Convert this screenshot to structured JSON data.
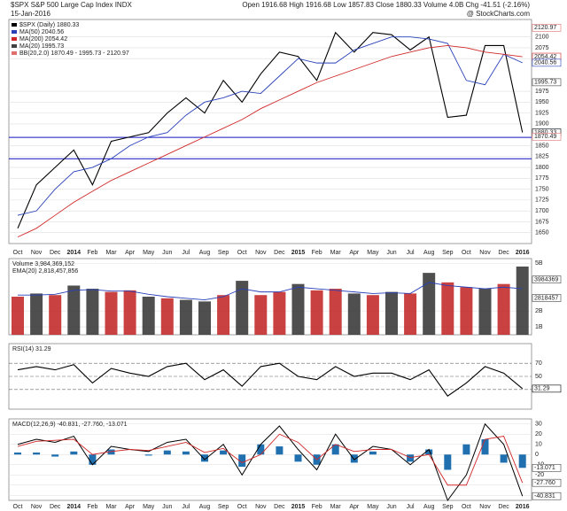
{
  "header": {
    "title": "$SPX S&P 500 Large Cap Index INDX",
    "date": "15-Jan-2016",
    "quote": "Open 1916.68 High 1916.68 Low 1857.83 Close 1880.33 Volume 4.0B Chg -41.51 (-2.16%)",
    "brand": "@ StockCharts.com"
  },
  "chart_data": [
    {
      "type": "line",
      "categories": [
        "Oct",
        "Nov",
        "Dec",
        "2014",
        "Feb",
        "Mar",
        "Apr",
        "May",
        "Jun",
        "Jul",
        "Aug",
        "Sep",
        "Oct",
        "Nov",
        "Dec",
        "2015",
        "Feb",
        "Mar",
        "Apr",
        "May",
        "Jun",
        "Jul",
        "Aug",
        "Sep",
        "Oct",
        "Nov",
        "Dec",
        "2016"
      ],
      "series": [
        {
          "name": "$SPX (Daily) 1880.33",
          "color": "#000000",
          "values": [
            1660,
            1760,
            1800,
            1840,
            1760,
            1860,
            1870,
            1880,
            1925,
            1960,
            1925,
            2000,
            1950,
            2015,
            2065,
            2055,
            2000,
            2110,
            2065,
            2110,
            2105,
            2070,
            2100,
            1915,
            1920,
            2080,
            2080,
            1880.33
          ]
        },
        {
          "name": "MA(50) 2040.56",
          "color": "#2840b8",
          "values": [
            1690,
            1700,
            1750,
            1790,
            1800,
            1820,
            1850,
            1870,
            1880,
            1920,
            1950,
            1960,
            1975,
            1970,
            2010,
            2050,
            2040,
            2040,
            2070,
            2085,
            2100,
            2100,
            2095,
            2085,
            2000,
            1990,
            2060,
            2040.56
          ]
        },
        {
          "name": "MA(200) 2054.42",
          "color": "#d02828",
          "values": [
            1640,
            1660,
            1690,
            1720,
            1745,
            1770,
            1790,
            1810,
            1830,
            1850,
            1870,
            1890,
            1910,
            1935,
            1955,
            1975,
            1995,
            2010,
            2025,
            2040,
            2055,
            2065,
            2075,
            2080,
            2075,
            2065,
            2060,
            2054.42
          ]
        }
      ],
      "legend_extra": [
        {
          "text": "MA(20) 1995.73",
          "color": "#404040"
        },
        {
          "text": "BB(20,2.0) 1870.49 - 1995.73 - 2120.97",
          "color": "#e07070"
        }
      ],
      "last_labels": [
        {
          "value": 2120.97,
          "color": "#e07070"
        },
        {
          "value": 2054.42,
          "color": "#d02828"
        },
        {
          "value": 2040.56,
          "color": "#2840b8"
        },
        {
          "value": 1995.73,
          "color": "#404040"
        },
        {
          "value": 1880.33,
          "color": "#000000"
        },
        {
          "value": 1870.49,
          "color": "#e07070"
        }
      ],
      "hlines": [
        1869,
        1820
      ],
      "hline_color": "#1010c0",
      "ylim": [
        1625,
        2140
      ],
      "yticks": [
        1650,
        1675,
        1700,
        1725,
        1750,
        1775,
        1800,
        1825,
        1850,
        1900,
        1925,
        1950,
        1975,
        2050,
        2075,
        2100
      ],
      "grid": true
    },
    {
      "type": "bar",
      "title": "Volume 3,984,369,152",
      "values": [
        2.9,
        3.1,
        3.0,
        3.6,
        3.4,
        3.2,
        3.3,
        2.9,
        2.8,
        2.7,
        2.6,
        3.0,
        3.9,
        3.0,
        3.2,
        3.7,
        3.3,
        3.4,
        3.1,
        3.0,
        3.2,
        3.1,
        4.4,
        3.8,
        3.5,
        3.4,
        3.7,
        4.8
      ],
      "colors": [
        "#c02020",
        "#303030",
        "#c02020",
        "#303030",
        "#303030",
        "#c02020",
        "#c02020",
        "#303030",
        "#c02020",
        "#303030",
        "#303030",
        "#c02020",
        "#303030",
        "#c02020",
        "#c02020",
        "#303030",
        "#c02020",
        "#c02020",
        "#303030",
        "#c02020",
        "#303030",
        "#c02020",
        "#303030",
        "#c02020",
        "#c02020",
        "#303030",
        "#c02020",
        "#303030"
      ],
      "ema": {
        "name": "EMA(20) 2,818,457,856",
        "color": "#2840b8",
        "values": [
          3.0,
          3.0,
          3.05,
          3.3,
          3.35,
          3.25,
          3.25,
          3.05,
          2.9,
          2.8,
          2.7,
          2.9,
          3.4,
          3.2,
          3.2,
          3.5,
          3.4,
          3.3,
          3.2,
          3.1,
          3.15,
          3.1,
          3.8,
          3.6,
          3.5,
          3.4,
          3.5,
          3.4
        ]
      },
      "last_labels": [
        {
          "value": 3.984369152,
          "label": "3984369"
        },
        {
          "value": 2.818457856,
          "label": "2818457"
        }
      ],
      "ylim": [
        0.5,
        5.3
      ],
      "yticks": [
        {
          "value": 5,
          "label": "5B"
        },
        {
          "value": 2,
          "label": "2B"
        },
        {
          "value": 1,
          "label": "1B"
        }
      ]
    },
    {
      "type": "line",
      "title": "RSI(14) 31.29",
      "series": [
        {
          "name": "RSI(14) 31.29",
          "color": "#000000",
          "values": [
            60,
            65,
            60,
            68,
            40,
            62,
            55,
            50,
            65,
            70,
            45,
            60,
            35,
            65,
            70,
            50,
            45,
            65,
            50,
            55,
            55,
            45,
            60,
            20,
            40,
            65,
            55,
            31.29
          ]
        }
      ],
      "last_labels": [
        {
          "value": 31.29,
          "color": "#000000"
        }
      ],
      "ylim": [
        0,
        100
      ],
      "yticks": [
        70,
        50,
        30
      ]
    },
    {
      "type": "macd",
      "title": "MACD(12,26,9) -40.831, -27.760, -13.071",
      "categories": [
        "Oct",
        "Nov",
        "Dec",
        "2014",
        "Feb",
        "Mar",
        "Apr",
        "May",
        "Jun",
        "Jul",
        "Aug",
        "Sep",
        "Oct",
        "Nov",
        "Dec",
        "2015",
        "Feb",
        "Mar",
        "Apr",
        "May",
        "Jun",
        "Jul",
        "Aug",
        "Sep",
        "Oct",
        "Nov",
        "Dec",
        "2016"
      ],
      "macd": {
        "color": "#000000",
        "values": [
          10,
          15,
          12,
          18,
          -10,
          8,
          5,
          3,
          12,
          15,
          -5,
          10,
          -20,
          10,
          28,
          5,
          -15,
          20,
          -5,
          8,
          5,
          -10,
          5,
          -45,
          -20,
          30,
          10,
          -40.831
        ]
      },
      "signal": {
        "color": "#d02828",
        "values": [
          8,
          13,
          14,
          15,
          0,
          3,
          5,
          4,
          8,
          12,
          2,
          6,
          -8,
          0,
          20,
          12,
          -5,
          10,
          3,
          5,
          5,
          -3,
          0,
          -30,
          -30,
          15,
          18,
          -27.76
        ]
      },
      "histogram": {
        "color": "#2070b0",
        "values": [
          2,
          2,
          -2,
          3,
          -10,
          5,
          0,
          -1,
          4,
          3,
          -7,
          4,
          -12,
          10,
          8,
          -7,
          -10,
          10,
          -8,
          3,
          0,
          -7,
          5,
          -15,
          10,
          15,
          -8,
          -13.071
        ]
      },
      "last_labels": [
        {
          "value": -13.071,
          "label": "-13.071"
        },
        {
          "value": -27.76,
          "label": "-27.760"
        },
        {
          "value": -40.831,
          "label": "-40.831"
        }
      ],
      "ylim": [
        -45,
        35
      ],
      "yticks": [
        30,
        20,
        10,
        0,
        -10,
        -20,
        -30,
        -40
      ]
    }
  ]
}
